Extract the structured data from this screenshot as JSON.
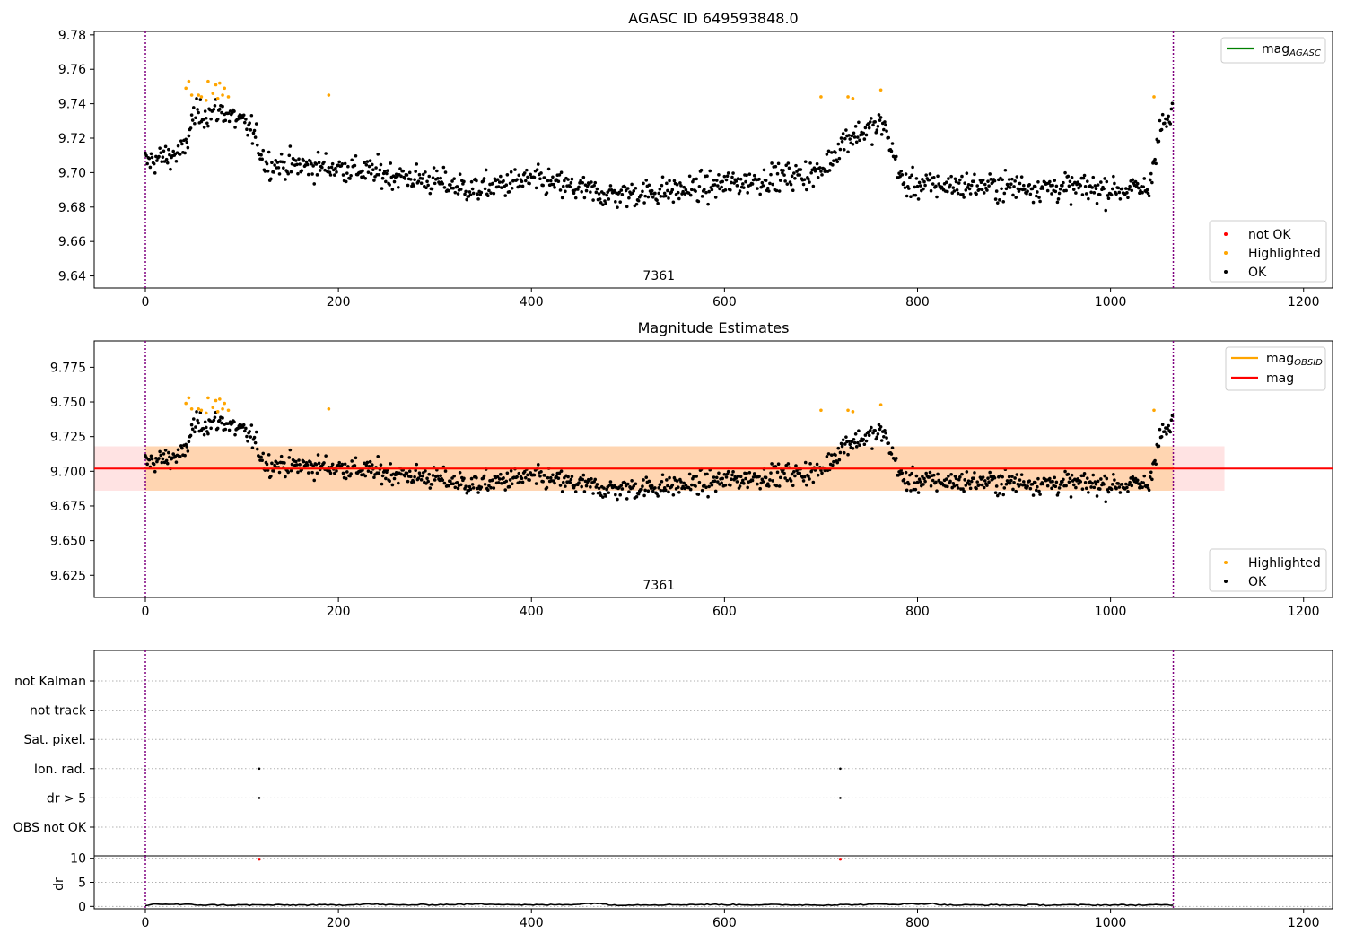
{
  "chart_data": [
    {
      "type": "scatter",
      "title": "AGASC ID 649593848.0",
      "xlim": [
        -53,
        1230
      ],
      "ylim": [
        9.633,
        9.782
      ],
      "x_ticks": [
        0,
        200,
        400,
        600,
        800,
        1000,
        1200
      ],
      "y_ticks": [
        9.64,
        9.66,
        9.68,
        9.7,
        9.72,
        9.74,
        9.76,
        9.78
      ],
      "y_tick_labels": [
        "9.64",
        "9.66",
        "9.68",
        "9.70",
        "9.72",
        "9.74",
        "9.76",
        "9.78"
      ],
      "obsid_boundaries": [
        0,
        1065
      ],
      "obsid_label": {
        "text": "7361",
        "x": 532
      },
      "legend_upper": {
        "placement": "upper-right",
        "entries": [
          {
            "label": "mag",
            "sub": "AGASC",
            "color": "#008000",
            "marker": "line"
          }
        ]
      },
      "legend_lower": {
        "placement": "lower-right",
        "entries": [
          {
            "label": "not OK",
            "color": "#ff0000",
            "marker": "dot"
          },
          {
            "label": "Highlighted",
            "color": "#ffa500",
            "marker": "dot"
          },
          {
            "label": "OK",
            "color": "#000000",
            "marker": "dot"
          }
        ]
      },
      "series": [
        {
          "name": "Highlighted",
          "color": "#ffa500",
          "points": [
            [
              42,
              9.749
            ],
            [
              45,
              9.753
            ],
            [
              48,
              9.745
            ],
            [
              55,
              9.745
            ],
            [
              58,
              9.744
            ],
            [
              63,
              9.742
            ],
            [
              65,
              9.753
            ],
            [
              70,
              9.746
            ],
            [
              73,
              9.751
            ],
            [
              75,
              9.743
            ],
            [
              77,
              9.752
            ],
            [
              80,
              9.745
            ],
            [
              82,
              9.749
            ],
            [
              86,
              9.744
            ],
            [
              190,
              9.745
            ],
            [
              700,
              9.744
            ],
            [
              728,
              9.744
            ],
            [
              733,
              9.743
            ],
            [
              762,
              9.748
            ],
            [
              1045,
              9.744
            ]
          ]
        },
        {
          "name": "OK",
          "color": "#000000",
          "trend": [
            [
              0,
              9.706
            ],
            [
              40,
              9.712
            ],
            [
              50,
              9.733
            ],
            [
              80,
              9.736
            ],
            [
              110,
              9.725
            ],
            [
              125,
              9.705
            ],
            [
              200,
              9.703
            ],
            [
              300,
              9.695
            ],
            [
              340,
              9.69
            ],
            [
              400,
              9.696
            ],
            [
              480,
              9.687
            ],
            [
              560,
              9.69
            ],
            [
              650,
              9.697
            ],
            [
              700,
              9.7
            ],
            [
              725,
              9.72
            ],
            [
              765,
              9.728
            ],
            [
              785,
              9.693
            ],
            [
              900,
              9.692
            ],
            [
              1040,
              9.69
            ],
            [
              1050,
              9.725
            ],
            [
              1065,
              9.733
            ]
          ],
          "spread": 0.009,
          "count": 1065
        }
      ]
    },
    {
      "type": "scatter",
      "title": "Magnitude Estimates",
      "xlim": [
        -53,
        1230
      ],
      "ylim": [
        9.609,
        9.794
      ],
      "x_ticks": [
        0,
        200,
        400,
        600,
        800,
        1000,
        1200
      ],
      "y_ticks": [
        9.625,
        9.65,
        9.675,
        9.7,
        9.725,
        9.75,
        9.775
      ],
      "y_tick_labels": [
        "9.625",
        "9.650",
        "9.675",
        "9.700",
        "9.725",
        "9.750",
        "9.775"
      ],
      "obsid_boundaries": [
        0,
        1065
      ],
      "obsid_label": {
        "text": "7361",
        "x": 532
      },
      "mag": {
        "value": 9.702,
        "x_range": [
          -53,
          1118
        ],
        "band": [
          9.686,
          9.718
        ],
        "color": "#ff0000"
      },
      "mag_obsid": {
        "value": 9.702,
        "x_range": [
          0,
          1065
        ],
        "band": [
          9.686,
          9.718
        ],
        "color": "#ffa500"
      },
      "legend_upper": {
        "placement": "upper-right",
        "entries": [
          {
            "label": "mag",
            "sub": "OBSID",
            "color": "#ffa500",
            "marker": "line"
          },
          {
            "label": "mag",
            "sub": "",
            "color": "#ff0000",
            "marker": "line"
          }
        ]
      },
      "legend_lower": {
        "placement": "lower-right",
        "entries": [
          {
            "label": "Highlighted",
            "color": "#ffa500",
            "marker": "dot"
          },
          {
            "label": "OK",
            "color": "#000000",
            "marker": "dot"
          }
        ]
      }
    },
    {
      "type": "scatter",
      "title": "",
      "xlim": [
        -53,
        1230
      ],
      "x_ticks": [
        0,
        200,
        400,
        600,
        800,
        1000,
        1200
      ],
      "flag_rows": [
        "not Kalman",
        "not track",
        "Sat. pixel.",
        "Ion. rad.",
        "dr > 5",
        "OBS not OK"
      ],
      "flag_points": [
        {
          "row": "Ion. rad.",
          "x": [
            118,
            720
          ]
        },
        {
          "row": "dr > 5",
          "x": [
            118,
            720
          ]
        }
      ],
      "obsid_boundaries": [
        0,
        1065
      ]
    },
    {
      "type": "line",
      "title": "",
      "xlim": [
        -53,
        1230
      ],
      "ylim": [
        -0.5,
        10.5
      ],
      "ylabel": "dr",
      "x_ticks": [
        0,
        200,
        400,
        600,
        800,
        1000,
        1200
      ],
      "y_ticks": [
        0,
        5,
        10
      ],
      "y_tick_labels": [
        "0",
        "5",
        "10"
      ],
      "dr_trend": [
        [
          0,
          0.2
        ],
        [
          10,
          0.5
        ],
        [
          40,
          0.4
        ],
        [
          60,
          0.3
        ],
        [
          200,
          0.3
        ],
        [
          230,
          0.5
        ],
        [
          260,
          0.3
        ],
        [
          360,
          0.5
        ],
        [
          400,
          0.3
        ],
        [
          440,
          0.4
        ],
        [
          470,
          0.7
        ],
        [
          480,
          0.3
        ],
        [
          580,
          0.4
        ],
        [
          700,
          0.3
        ],
        [
          790,
          0.5
        ],
        [
          815,
          0.6
        ],
        [
          830,
          0.3
        ],
        [
          1065,
          0.3
        ]
      ],
      "outliers": [
        {
          "x": 118,
          "y": 9.8,
          "color": "#ff0000"
        },
        {
          "x": 720,
          "y": 9.8,
          "color": "#ff0000"
        }
      ],
      "obsid_boundaries": [
        0,
        1065
      ]
    }
  ]
}
